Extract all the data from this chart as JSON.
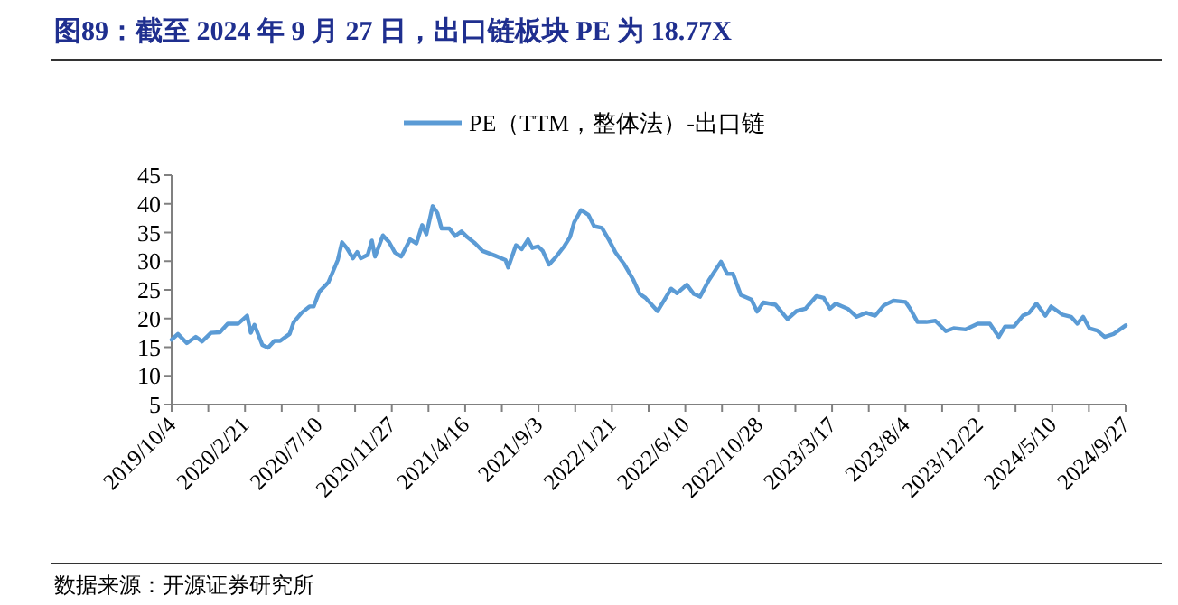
{
  "chart_data": {
    "type": "line",
    "title": "图89：截至 2024 年 9 月 27 日，出口链板块 PE 为 18.77X",
    "legend": "top",
    "annotations": [
      "数据来源：开源证券研究所"
    ],
    "xlim": [
      "2019-10-04",
      "2024-09-27"
    ],
    "ylim": [
      5,
      45
    ],
    "yticks": [
      5,
      10,
      15,
      20,
      25,
      30,
      35,
      40,
      45
    ],
    "xticks": [
      {
        "value": "2019-10-04",
        "label": "2019/10/4"
      },
      {
        "value": "2019-12-13",
        "label": null
      },
      {
        "value": "2020-02-21",
        "label": "2020/2/21"
      },
      {
        "value": "2020-05-01",
        "label": null
      },
      {
        "value": "2020-07-10",
        "label": "2020/7/10"
      },
      {
        "value": "2020-09-18",
        "label": null
      },
      {
        "value": "2020-11-27",
        "label": "2020/11/27"
      },
      {
        "value": "2021-02-05",
        "label": null
      },
      {
        "value": "2021-04-16",
        "label": "2021/4/16"
      },
      {
        "value": "2021-06-25",
        "label": null
      },
      {
        "value": "2021-09-03",
        "label": "2021/9/3"
      },
      {
        "value": "2021-11-12",
        "label": null
      },
      {
        "value": "2022-01-21",
        "label": "2022/1/21"
      },
      {
        "value": "2022-04-01",
        "label": null
      },
      {
        "value": "2022-06-10",
        "label": "2022/6/10"
      },
      {
        "value": "2022-08-19",
        "label": null
      },
      {
        "value": "2022-10-28",
        "label": "2022/10/28"
      },
      {
        "value": "2023-01-06",
        "label": null
      },
      {
        "value": "2023-03-17",
        "label": "2023/3/17"
      },
      {
        "value": "2023-05-26",
        "label": null
      },
      {
        "value": "2023-08-04",
        "label": "2023/8/4"
      },
      {
        "value": "2023-10-13",
        "label": null
      },
      {
        "value": "2023-12-22",
        "label": "2023/12/22"
      },
      {
        "value": "2024-03-01",
        "label": null
      },
      {
        "value": "2024-05-10",
        "label": "2024/5/10"
      },
      {
        "value": "2024-07-19",
        "label": null
      },
      {
        "value": "2024-09-27",
        "label": "2024/9/27"
      }
    ],
    "x": [
      "2019-10-04",
      "2019-10-16",
      "2019-11-02",
      "2019-11-19",
      "2019-12-01",
      "2019-12-18",
      "2020-01-04",
      "2020-01-19",
      "2020-02-08",
      "2020-02-25",
      "2020-03-03",
      "2020-03-10",
      "2020-03-25",
      "2020-04-05",
      "2020-04-17",
      "2020-04-28",
      "2020-05-16",
      "2020-05-24",
      "2020-06-08",
      "2020-06-23",
      "2020-07-01",
      "2020-07-12",
      "2020-07-29",
      "2020-08-10",
      "2020-08-16",
      "2020-08-24",
      "2020-09-02",
      "2020-09-14",
      "2020-09-22",
      "2020-09-29",
      "2020-10-12",
      "2020-10-20",
      "2020-10-26",
      "2020-11-10",
      "2020-11-22",
      "2020-12-03",
      "2020-12-15",
      "2021-01-01",
      "2021-01-13",
      "2021-01-24",
      "2021-02-01",
      "2021-02-13",
      "2021-02-22",
      "2021-03-02",
      "2021-03-17",
      "2021-03-28",
      "2021-04-09",
      "2021-04-20",
      "2021-05-05",
      "2021-05-19",
      "2021-06-11",
      "2021-07-02",
      "2021-07-07",
      "2021-07-22",
      "2021-08-02",
      "2021-08-14",
      "2021-08-22",
      "2021-09-02",
      "2021-09-11",
      "2021-09-23",
      "2021-10-04",
      "2021-10-22",
      "2021-11-02",
      "2021-11-10",
      "2021-11-23",
      "2021-12-07",
      "2021-12-18",
      "2022-01-02",
      "2022-01-16",
      "2022-01-28",
      "2022-02-14",
      "2022-03-03",
      "2022-03-15",
      "2022-03-26",
      "2022-04-18",
      "2022-04-30",
      "2022-05-14",
      "2022-05-25",
      "2022-06-13",
      "2022-06-26",
      "2022-07-08",
      "2022-07-25",
      "2022-08-17",
      "2022-08-29",
      "2022-09-09",
      "2022-09-24",
      "2022-10-14",
      "2022-10-25",
      "2022-11-06",
      "2022-11-29",
      "2022-12-22",
      "2023-01-08",
      "2023-01-25",
      "2023-02-15",
      "2023-03-01",
      "2023-03-13",
      "2023-03-24",
      "2023-04-16",
      "2023-05-03",
      "2023-05-21",
      "2023-06-07",
      "2023-06-24",
      "2023-07-12",
      "2023-08-04",
      "2023-08-13",
      "2023-08-27",
      "2023-09-13",
      "2023-09-30",
      "2023-10-20",
      "2023-11-04",
      "2023-11-27",
      "2023-12-20",
      "2024-01-12",
      "2024-01-29",
      "2024-02-10",
      "2024-02-27",
      "2024-03-15",
      "2024-03-27",
      "2024-04-10",
      "2024-04-27",
      "2024-05-08",
      "2024-05-29",
      "2024-06-15",
      "2024-06-27",
      "2024-07-08",
      "2024-07-20",
      "2024-08-04",
      "2024-08-18",
      "2024-09-04",
      "2024-09-27"
    ],
    "series": [
      {
        "name": "PE（TTM，整体法）-出口链",
        "color": "#5b9bd5",
        "values": [
          16.3,
          17.3,
          15.7,
          16.8,
          16.0,
          17.5,
          17.6,
          19.1,
          19.1,
          20.5,
          17.5,
          18.9,
          15.4,
          14.9,
          16.1,
          16.1,
          17.3,
          19.4,
          21.0,
          22.1,
          22.1,
          24.7,
          26.3,
          28.9,
          30.2,
          33.3,
          32.3,
          30.5,
          31.6,
          30.5,
          31.1,
          33.6,
          30.8,
          34.5,
          33.3,
          31.5,
          30.8,
          33.8,
          33.1,
          36.3,
          34.7,
          39.6,
          38.4,
          35.7,
          35.7,
          34.4,
          35.2,
          34.2,
          33.1,
          31.8,
          31.0,
          30.2,
          28.9,
          32.8,
          32.1,
          33.8,
          32.3,
          32.6,
          31.8,
          29.4,
          30.5,
          32.6,
          34.2,
          36.8,
          38.9,
          38.1,
          36.1,
          35.8,
          33.6,
          31.5,
          29.4,
          26.7,
          24.3,
          23.6,
          21.3,
          23.1,
          25.2,
          24.4,
          25.9,
          24.3,
          23.8,
          26.7,
          29.9,
          27.8,
          27.8,
          24.1,
          23.3,
          21.2,
          22.8,
          22.4,
          19.9,
          21.3,
          21.7,
          23.9,
          23.6,
          21.7,
          22.6,
          21.7,
          20.3,
          21.0,
          20.5,
          22.3,
          23.1,
          22.9,
          21.7,
          19.4,
          19.4,
          19.6,
          17.8,
          18.3,
          18.1,
          19.1,
          19.1,
          16.8,
          18.6,
          18.6,
          20.5,
          21.0,
          22.6,
          20.5,
          22.1,
          20.7,
          20.3,
          19.1,
          20.3,
          18.3,
          17.9,
          16.8,
          17.3,
          18.8
        ]
      }
    ]
  }
}
